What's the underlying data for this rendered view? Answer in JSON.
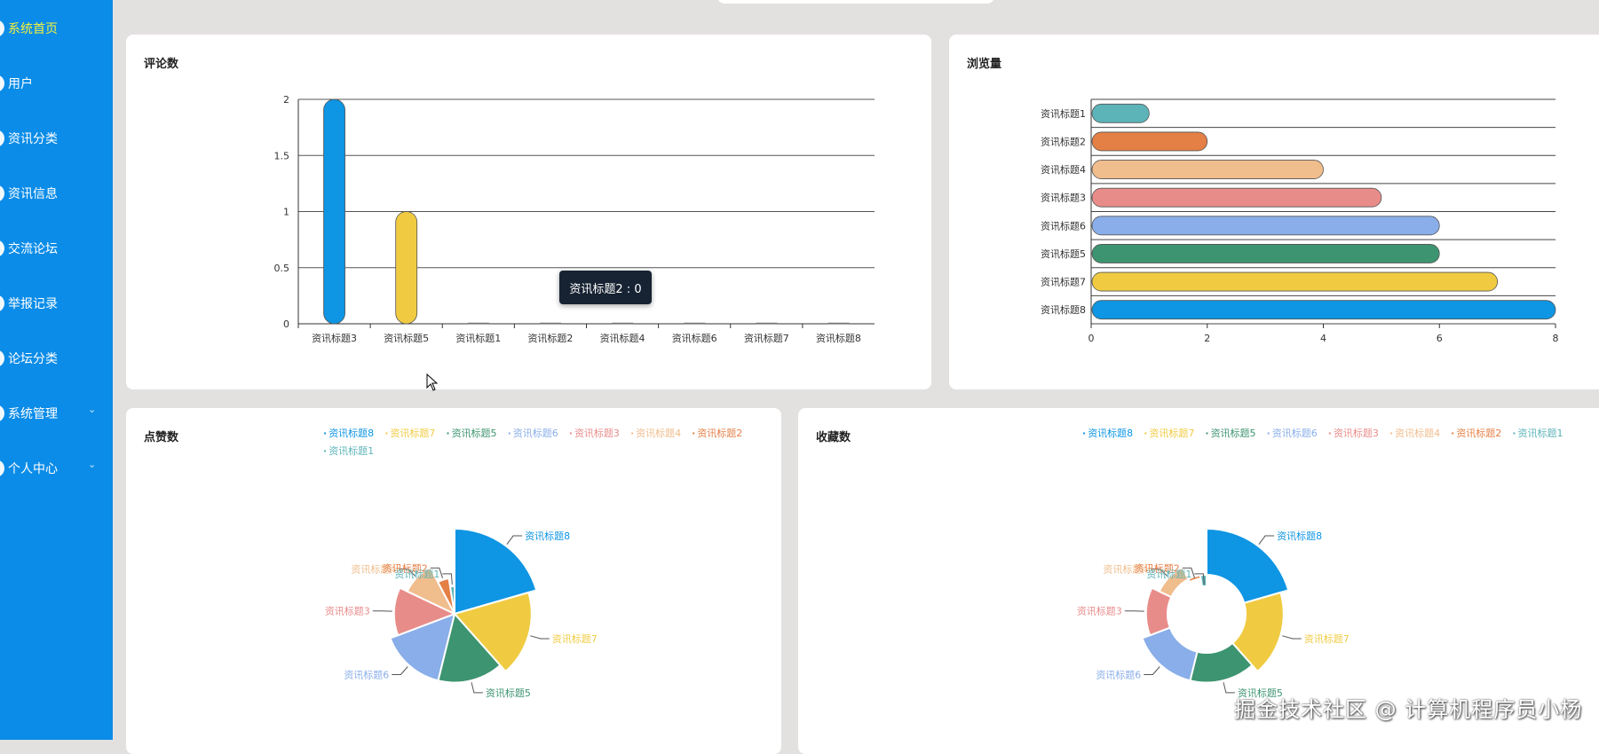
{
  "nav": [
    {
      "label": "系统首页",
      "active": true,
      "expandable": false
    },
    {
      "label": "用户",
      "active": false,
      "expandable": false
    },
    {
      "label": "资讯分类",
      "active": false,
      "expandable": false
    },
    {
      "label": "资讯信息",
      "active": false,
      "expandable": false
    },
    {
      "label": "交流论坛",
      "active": false,
      "expandable": false
    },
    {
      "label": "举报记录",
      "active": false,
      "expandable": false
    },
    {
      "label": "论坛分类",
      "active": false,
      "expandable": false
    },
    {
      "label": "系统管理",
      "active": false,
      "expandable": true
    },
    {
      "label": "个人中心",
      "active": false,
      "expandable": true
    }
  ],
  "cards": {
    "comments": {
      "title": "评论数"
    },
    "views": {
      "title": "浏览量"
    },
    "likes": {
      "title": "点赞数"
    },
    "favorites": {
      "title": "收藏数"
    }
  },
  "tooltip": {
    "text": "资讯标题2 : 0"
  },
  "watermark": "掘金技术社区 @ 计算机程序员小杨",
  "colors": {
    "资讯标题8": "#0e95e3",
    "资讯标题7": "#f0cb42",
    "资讯标题5": "#3d9470",
    "资讯标题6": "#89aee9",
    "资讯标题3": "#e88c8a",
    "资讯标题4": "#f0bd8d",
    "资讯标题2": "#e47f45",
    "资讯标题1": "#5cb3b8",
    "sidebar": "#0b8ce8"
  },
  "legend_items": [
    "资讯标题8",
    "资讯标题7",
    "资讯标题5",
    "资讯标题6",
    "资讯标题3",
    "资讯标题4",
    "资讯标题2",
    "资讯标题1"
  ],
  "chart_data": [
    {
      "type": "bar",
      "id": "comments",
      "title": "评论数",
      "categories": [
        "资讯标题3",
        "资讯标题5",
        "资讯标题1",
        "资讯标题2",
        "资讯标题4",
        "资讯标题6",
        "资讯标题7",
        "资讯标题8"
      ],
      "values": [
        2,
        1,
        0,
        0,
        0,
        0,
        0,
        0
      ],
      "ylim": [
        0,
        2
      ],
      "yticks": [
        "0",
        "0.5",
        "1",
        "1.5",
        "2"
      ],
      "grid": true
    },
    {
      "type": "bar",
      "orientation": "horizontal",
      "id": "views",
      "title": "浏览量",
      "categories": [
        "资讯标题1",
        "资讯标题2",
        "资讯标题4",
        "资讯标题3",
        "资讯标题6",
        "资讯标题5",
        "资讯标题7",
        "资讯标题8"
      ],
      "values": [
        1,
        2,
        4,
        5,
        6,
        6,
        7,
        8
      ],
      "xlim": [
        0,
        8
      ],
      "xticks": [
        "0",
        "2",
        "4",
        "6",
        "8"
      ],
      "grid": true
    },
    {
      "type": "pie",
      "id": "likes",
      "title": "点赞数",
      "rose": true,
      "labels": [
        "资讯标题8",
        "资讯标题7",
        "资讯标题5",
        "资讯标题6",
        "资讯标题3",
        "资讯标题4",
        "资讯标题2",
        "资讯标题1"
      ],
      "values": [
        8,
        7,
        6,
        6,
        5,
        4,
        2,
        1
      ],
      "legend": "top"
    },
    {
      "type": "pie",
      "id": "favorites",
      "title": "收藏数",
      "rose": true,
      "donut": true,
      "labels": [
        "资讯标题8",
        "资讯标题7",
        "资讯标题5",
        "资讯标题6",
        "资讯标题3",
        "资讯标题4",
        "资讯标题2",
        "资讯标题1"
      ],
      "values": [
        8,
        7,
        6,
        6,
        5,
        4,
        2,
        1
      ],
      "legend": "top"
    }
  ]
}
